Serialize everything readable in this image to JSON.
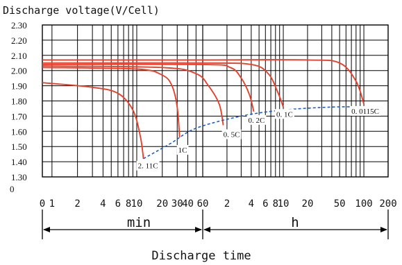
{
  "chart_data": {
    "type": "line",
    "title": "",
    "ylabel": "Discharge voltage(V/Cell)",
    "xlabel": "Discharge time",
    "x_units": [
      "min",
      "h"
    ],
    "ylim": [
      1.3,
      2.3
    ],
    "y_zero_label": "0",
    "y_ticks": [
      "2.30",
      "2.20",
      "2.10",
      "2.00",
      "1.90",
      "1.80",
      "1.70",
      "1.60",
      "1.50",
      "1.40",
      "1.30"
    ],
    "x_ticks": {
      "minutes": [
        "0",
        "1",
        "2",
        "4",
        "6",
        "8",
        "10",
        "20",
        "30",
        "40",
        "60"
      ],
      "hours": [
        "2",
        "4",
        "6",
        "8",
        "10",
        "20",
        "50",
        "100",
        "200"
      ]
    },
    "grid": true,
    "colors": {
      "curve": "#e8402a",
      "cutoff": "#1a5ec4",
      "grid": "#000000"
    },
    "series": [
      {
        "name": "2.11C",
        "x": [
          "0 min",
          "3 min",
          "6 min",
          "9 min",
          "11 min",
          "12 min"
        ],
        "values": [
          1.92,
          1.89,
          1.85,
          1.74,
          1.57,
          1.42
        ]
      },
      {
        "name": "1C",
        "x": [
          "0 min",
          "10 min",
          "20 min",
          "26 min",
          "30 min",
          "32 min"
        ],
        "values": [
          2.02,
          2.01,
          1.97,
          1.9,
          1.76,
          1.56
        ]
      },
      {
        "name": "0.5C",
        "x": [
          "0 min",
          "20 min",
          "50 min",
          "70 min",
          "1.6 h",
          "1.8 h"
        ],
        "values": [
          2.03,
          2.02,
          1.98,
          1.9,
          1.78,
          1.64
        ]
      },
      {
        "name": "0.2C",
        "x": [
          "0 min",
          "60 min",
          "2.2 h",
          "3 h",
          "3.8 h",
          "4.3 h"
        ],
        "values": [
          2.04,
          2.04,
          2.02,
          1.95,
          1.84,
          1.73
        ]
      },
      {
        "name": "0.1C",
        "x": [
          "0 min",
          "60 min",
          "4 h",
          "6.5 h",
          "8.5 h",
          "10 h"
        ],
        "values": [
          2.05,
          2.05,
          2.04,
          1.98,
          1.86,
          1.76
        ]
      },
      {
        "name": "0.0115C",
        "x": [
          "0 min",
          "60 min",
          "20 h",
          "50 h",
          "80 h",
          "100 h"
        ],
        "values": [
          2.07,
          2.07,
          2.07,
          2.05,
          1.93,
          1.78
        ]
      }
    ],
    "cutoff_line": {
      "x": [
        "12 min",
        "25 min",
        "50 min",
        "3 h",
        "10 h",
        "40 h",
        "100 h"
      ],
      "values": [
        1.42,
        1.52,
        1.62,
        1.7,
        1.74,
        1.76,
        1.76
      ]
    }
  }
}
